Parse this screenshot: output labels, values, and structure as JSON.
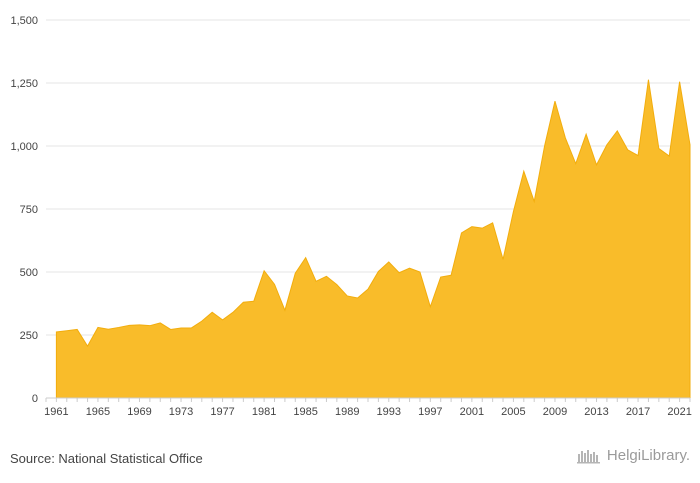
{
  "source_text": "Source: National Statistical Office",
  "logo_text": "HelgiLibrary.",
  "logo_icon": "helgi-library-icon",
  "colors": {
    "area": "#f9bc2a",
    "area_line": "#f2ad0d",
    "grid": "#e6e6e6",
    "text": "#444444"
  },
  "chart_data": {
    "type": "area",
    "title": "",
    "xlabel": "",
    "ylabel": "",
    "ylim": [
      0,
      1500
    ],
    "xlim": [
      1960,
      2022
    ],
    "grid": true,
    "legend": "none",
    "yticks": [
      0,
      250,
      500,
      750,
      1000,
      1250,
      1500
    ],
    "ytick_labels": [
      "0",
      "250",
      "500",
      "750",
      "1,000",
      "1,250",
      "1,500"
    ],
    "xticks": [
      1961,
      1965,
      1969,
      1973,
      1977,
      1981,
      1985,
      1989,
      1993,
      1997,
      2001,
      2005,
      2009,
      2013,
      2017,
      2021
    ],
    "x": [
      1961,
      1962,
      1963,
      1964,
      1965,
      1966,
      1967,
      1968,
      1969,
      1970,
      1971,
      1972,
      1973,
      1974,
      1975,
      1976,
      1977,
      1978,
      1979,
      1980,
      1981,
      1982,
      1983,
      1984,
      1985,
      1986,
      1987,
      1988,
      1989,
      1990,
      1991,
      1992,
      1993,
      1994,
      1995,
      1996,
      1997,
      1998,
      1999,
      2000,
      2001,
      2002,
      2003,
      2004,
      2005,
      2006,
      2007,
      2008,
      2009,
      2010,
      2011,
      2012,
      2013,
      2014,
      2015,
      2016,
      2017,
      2018,
      2019,
      2020,
      2021,
      2022
    ],
    "values": [
      262,
      267,
      272,
      206,
      280,
      273,
      280,
      288,
      290,
      287,
      298,
      272,
      278,
      278,
      305,
      340,
      310,
      340,
      380,
      384,
      505,
      451,
      348,
      495,
      557,
      463,
      483,
      450,
      405,
      397,
      432,
      502,
      540,
      497,
      515,
      500,
      362,
      480,
      487,
      655,
      680,
      674,
      695,
      550,
      740,
      900,
      780,
      1000,
      1178,
      1032,
      930,
      1047,
      925,
      1005,
      1060,
      985,
      962,
      1263,
      990,
      960,
      1255,
      1005
    ]
  }
}
